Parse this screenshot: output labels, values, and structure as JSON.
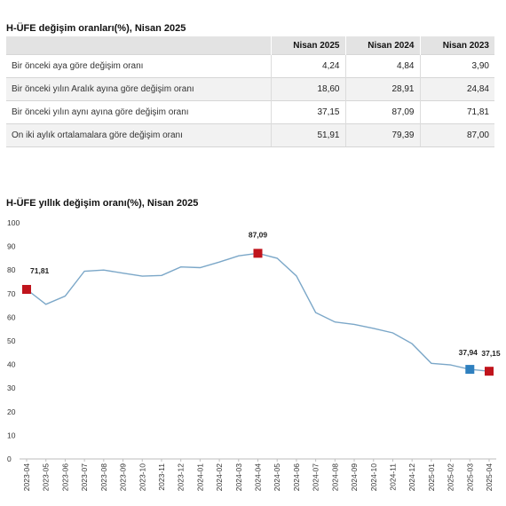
{
  "table": {
    "title": "H-ÜFE değişim oranları(%), Nisan 2025",
    "columns": [
      "",
      "Nisan 2025",
      "Nisan 2024",
      "Nisan 2023"
    ],
    "rows": [
      {
        "label": "Bir önceki aya göre değişim oranı",
        "values": [
          "4,24",
          "4,84",
          "3,90"
        ]
      },
      {
        "label": "Bir önceki yılın Aralık ayına göre değişim oranı",
        "values": [
          "18,60",
          "28,91",
          "24,84"
        ]
      },
      {
        "label": "Bir önceki yılın aynı ayına göre değişim oranı",
        "values": [
          "37,15",
          "87,09",
          "71,81"
        ]
      },
      {
        "label": "On iki aylık ortalamalara göre değişim oranı",
        "values": [
          "51,91",
          "79,39",
          "87,00"
        ]
      }
    ]
  },
  "chart_data": {
    "type": "line",
    "title": "H-ÜFE yıllık değişim oranı(%), Nisan 2025",
    "xlabel": "",
    "ylabel": "",
    "ylim": [
      0,
      100
    ],
    "yticks": [
      0,
      10,
      20,
      30,
      40,
      50,
      60,
      70,
      80,
      90,
      100
    ],
    "grid": false,
    "line_color": "#7ba7c8",
    "x": [
      "2023-04",
      "2023-05",
      "2023-06",
      "2023-07",
      "2023-08",
      "2023-09",
      "2023-10",
      "2023-11",
      "2023-12",
      "2024-01",
      "2024-02",
      "2024-03",
      "2024-04",
      "2024-05",
      "2024-06",
      "2024-07",
      "2024-08",
      "2024-09",
      "2024-10",
      "2024-11",
      "2024-12",
      "2025-01",
      "2025-02",
      "2025-03",
      "2025-04"
    ],
    "values": [
      71.81,
      65.5,
      69.0,
      79.5,
      80.0,
      78.7,
      77.4,
      77.7,
      81.3,
      81.0,
      83.4,
      86.0,
      87.09,
      85.0,
      77.5,
      62.0,
      58.0,
      57.0,
      55.3,
      53.4,
      48.8,
      40.5,
      39.8,
      37.94,
      37.15
    ],
    "highlights": [
      {
        "x": "2023-04",
        "value": 71.81,
        "label": "71,81",
        "color": "#c0141c"
      },
      {
        "x": "2024-04",
        "value": 87.09,
        "label": "87,09",
        "color": "#c0141c"
      },
      {
        "x": "2025-03",
        "value": 37.94,
        "label": "37,94",
        "color": "#2f80bf"
      },
      {
        "x": "2025-04",
        "value": 37.15,
        "label": "37,15",
        "color": "#c0141c"
      }
    ]
  }
}
